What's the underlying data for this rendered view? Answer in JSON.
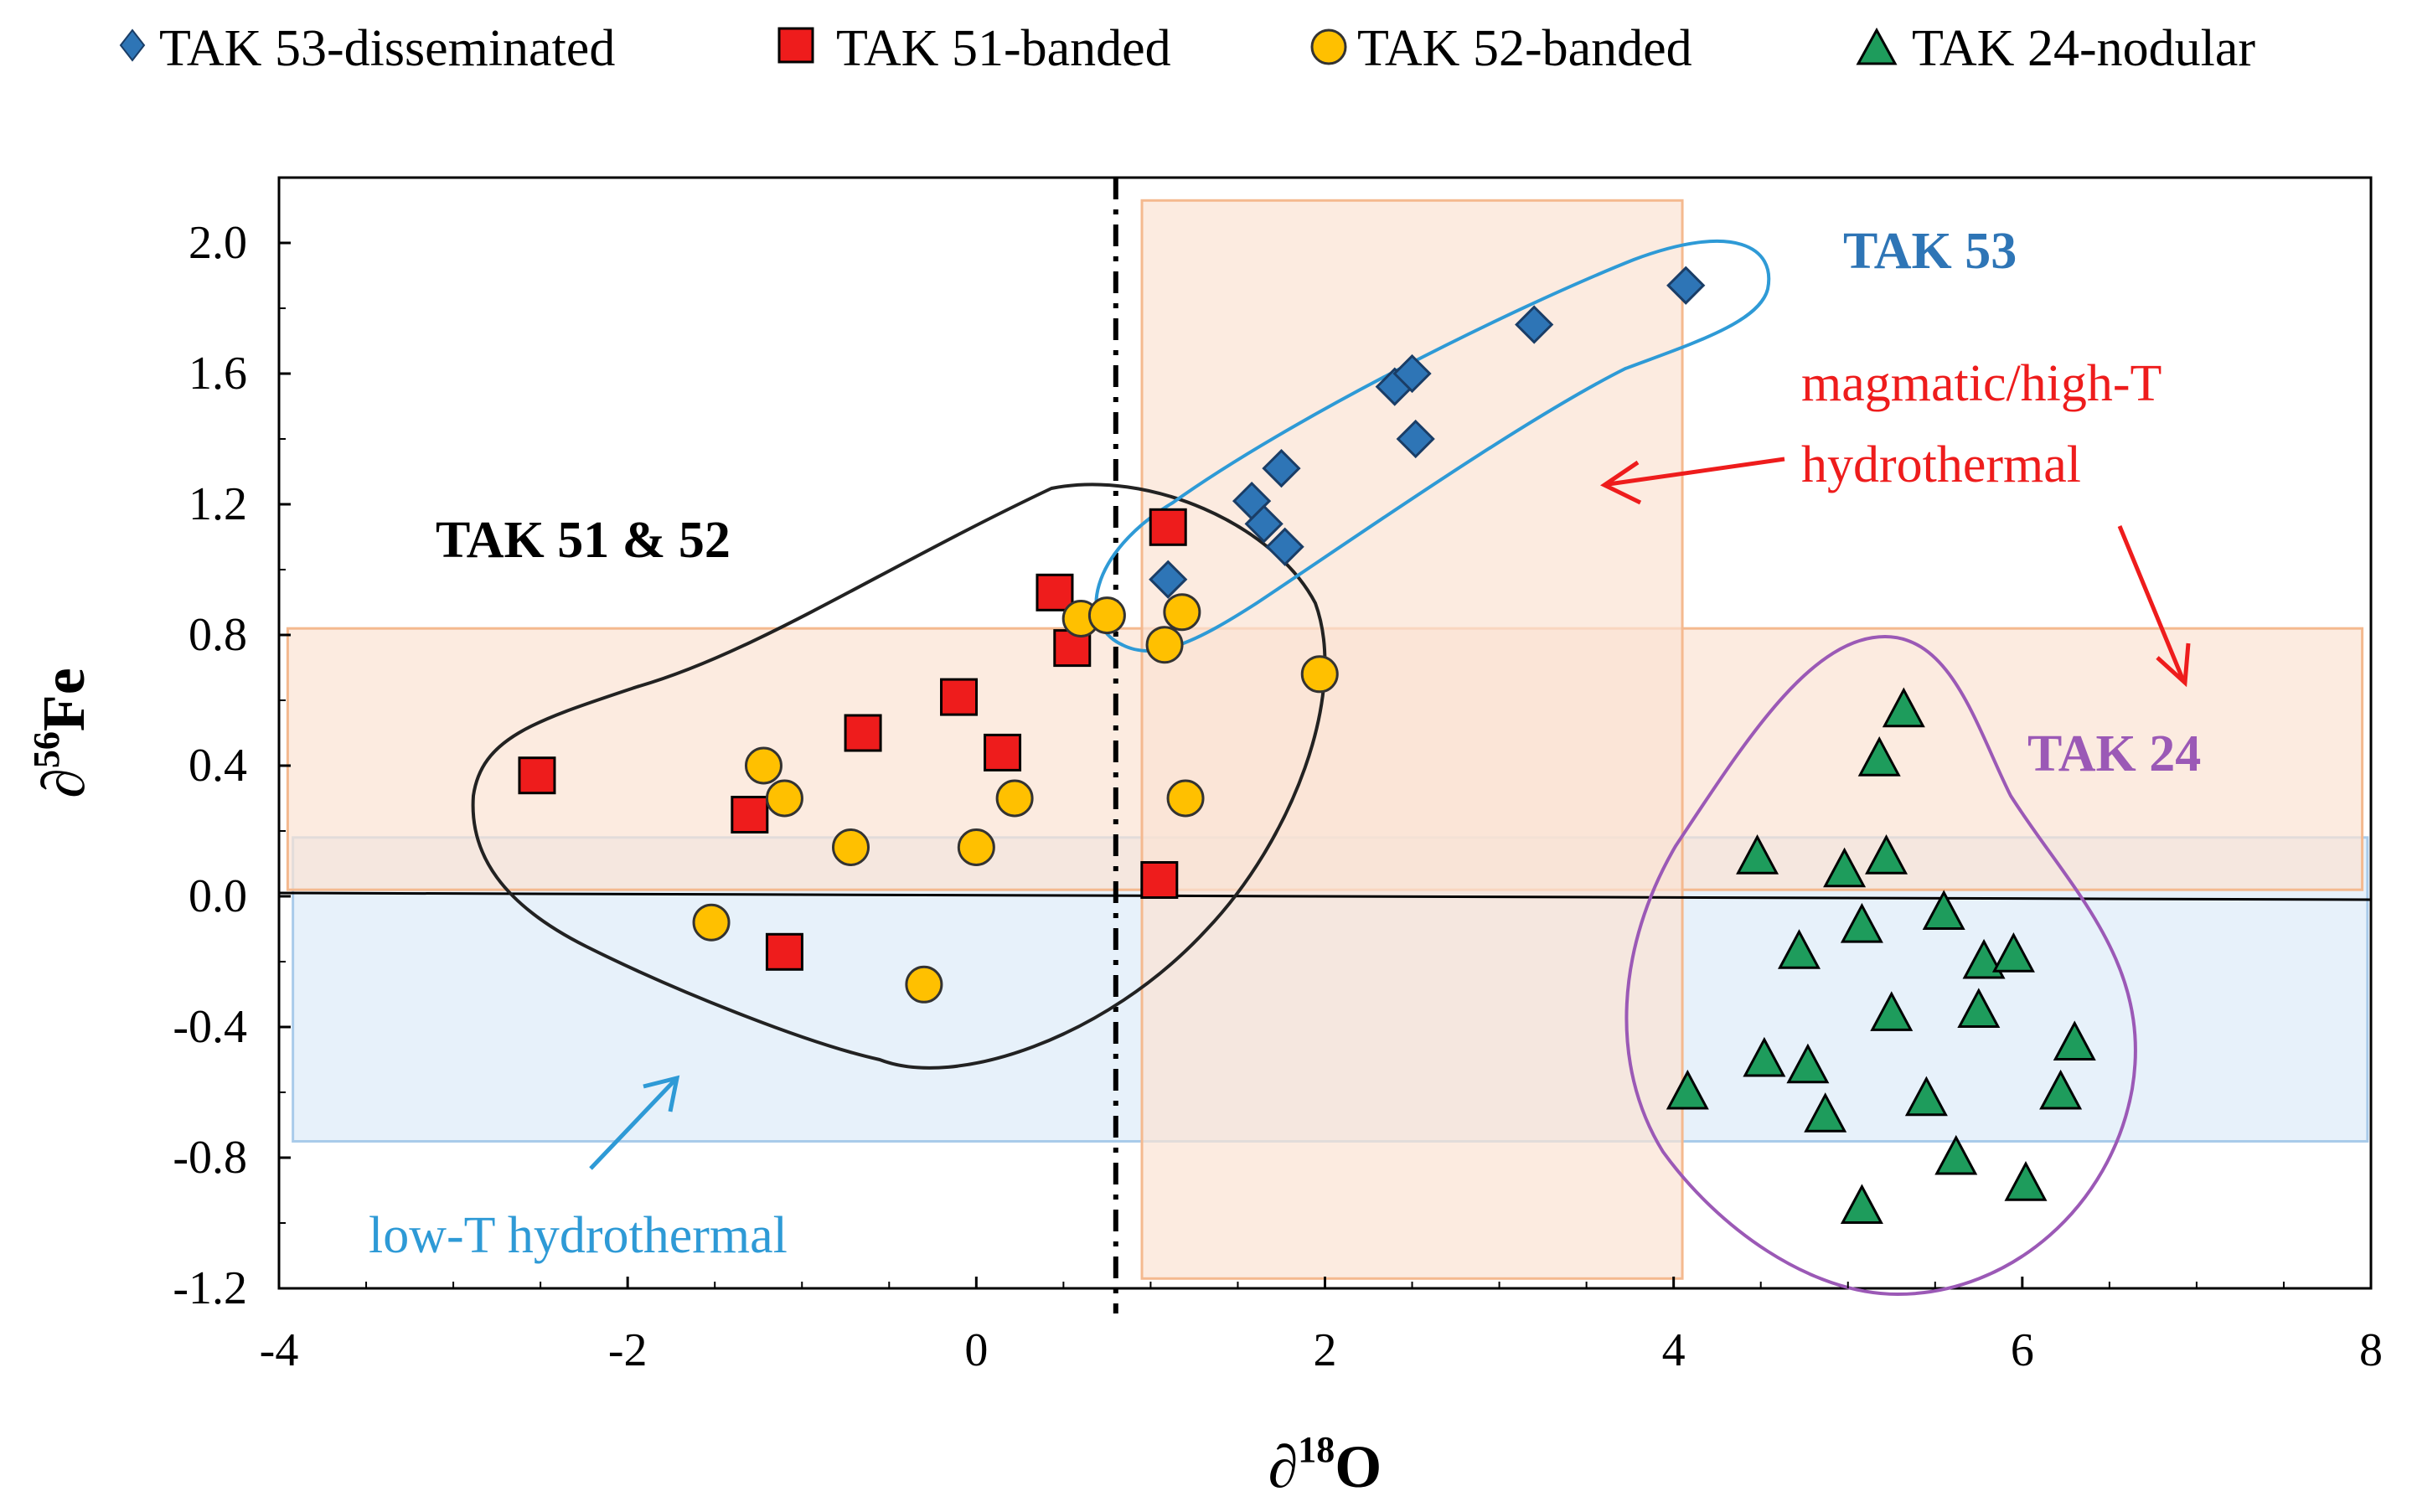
{
  "chart_data": {
    "type": "scatter",
    "title": "",
    "xlabel": {
      "base": "∂",
      "sup": "18",
      "rest": "O"
    },
    "ylabel": {
      "base": "∂",
      "sup": "56",
      "rest": "Fe"
    },
    "xlim": [
      -4,
      8
    ],
    "ylim": [
      -1.2,
      2.2
    ],
    "x_ticks": [
      "-4",
      "-2",
      "0",
      "2",
      "4",
      "6",
      "8"
    ],
    "y_ticks": [
      "-1.2",
      "-0.8",
      "-0.4",
      "0.0",
      "0.4",
      "0.8",
      "1.2",
      "1.6",
      "2.0"
    ],
    "legend_position": "top",
    "series": [
      {
        "name": "TAK 53-disseminated",
        "marker": "diamond",
        "color": "#2E75B6",
        "points": [
          [
            1.1,
            0.97
          ],
          [
            1.58,
            1.21
          ],
          [
            1.65,
            1.14
          ],
          [
            1.75,
            1.31
          ],
          [
            1.77,
            1.07
          ],
          [
            2.4,
            1.56
          ],
          [
            2.5,
            1.6
          ],
          [
            2.52,
            1.4
          ],
          [
            3.2,
            1.75
          ],
          [
            4.07,
            1.87
          ]
        ]
      },
      {
        "name": "TAK 51-banded",
        "marker": "square",
        "color": "#EE1C1C",
        "points": [
          [
            -2.52,
            0.37
          ],
          [
            -1.3,
            0.25
          ],
          [
            -1.1,
            -0.17
          ],
          [
            -0.65,
            0.5
          ],
          [
            -0.1,
            0.61
          ],
          [
            0.15,
            0.44
          ],
          [
            0.45,
            0.93
          ],
          [
            0.55,
            0.76
          ],
          [
            1.1,
            1.13
          ],
          [
            1.05,
            0.05
          ]
        ]
      },
      {
        "name": "TAK 52-banded",
        "marker": "circle",
        "color": "#FFC000",
        "points": [
          [
            -1.52,
            -0.08
          ],
          [
            -1.22,
            0.4
          ],
          [
            -1.1,
            0.3
          ],
          [
            -0.72,
            0.15
          ],
          [
            -0.3,
            -0.27
          ],
          [
            0,
            0.15
          ],
          [
            0.22,
            0.3
          ],
          [
            0.6,
            0.85
          ],
          [
            0.75,
            0.86
          ],
          [
            1.08,
            0.77
          ],
          [
            1.18,
            0.87
          ],
          [
            1.2,
            0.3
          ],
          [
            1.97,
            0.68
          ]
        ]
      },
      {
        "name": "TAK 24-nodular",
        "marker": "triangle",
        "color": "#1E9C5C",
        "points": [
          [
            4.08,
            -0.6
          ],
          [
            4.48,
            0.12
          ],
          [
            4.52,
            -0.5
          ],
          [
            4.72,
            -0.17
          ],
          [
            4.77,
            -0.52
          ],
          [
            4.87,
            -0.67
          ],
          [
            4.98,
            0.08
          ],
          [
            5.08,
            -0.09
          ],
          [
            5.08,
            -0.95
          ],
          [
            5.18,
            0.42
          ],
          [
            5.22,
            0.12
          ],
          [
            5.25,
            -0.36
          ],
          [
            5.32,
            0.57
          ],
          [
            5.45,
            -0.62
          ],
          [
            5.55,
            -0.05
          ],
          [
            5.62,
            -0.8
          ],
          [
            5.75,
            -0.35
          ],
          [
            5.78,
            -0.2
          ],
          [
            5.95,
            -0.18
          ],
          [
            6.02,
            -0.88
          ],
          [
            6.22,
            -0.6
          ],
          [
            6.3,
            -0.45
          ]
        ]
      }
    ],
    "regions": [
      {
        "name": "magmatic/high-T hydrothermal",
        "x_range": [
          0.95,
          4.05
        ],
        "y_range": [
          -1.17,
          2.13
        ],
        "color": "#FBE3D3"
      },
      {
        "name": "magmatic/high-T hydrothermal band",
        "x_range": [
          -3.95,
          7.95
        ],
        "y_range": [
          0.02,
          0.82
        ],
        "color": "#FBE3D3"
      },
      {
        "name": "low-T hydrothermal",
        "x_range": [
          -3.92,
          7.98
        ],
        "y_range": [
          -0.75,
          0.18
        ],
        "color": "#E3EEF9"
      }
    ],
    "reference_lines": [
      {
        "type": "vertical",
        "x": 0.8,
        "style": "dash-dot"
      },
      {
        "type": "horizontal",
        "y": 0.0,
        "style": "solid"
      }
    ],
    "annotations": [
      {
        "text": "TAK 53",
        "color": "#2E75B6"
      },
      {
        "text": "TAK 51 & 52",
        "color": "#000000"
      },
      {
        "text": "magmatic/high-T",
        "color": "#EE1C1C"
      },
      {
        "text": "hydrothermal",
        "color": "#EE1C1C"
      },
      {
        "text": "TAK 24",
        "color": "#9B59B6"
      },
      {
        "text": "low-T hydrothermal",
        "color": "#2E9AD6"
      }
    ]
  }
}
